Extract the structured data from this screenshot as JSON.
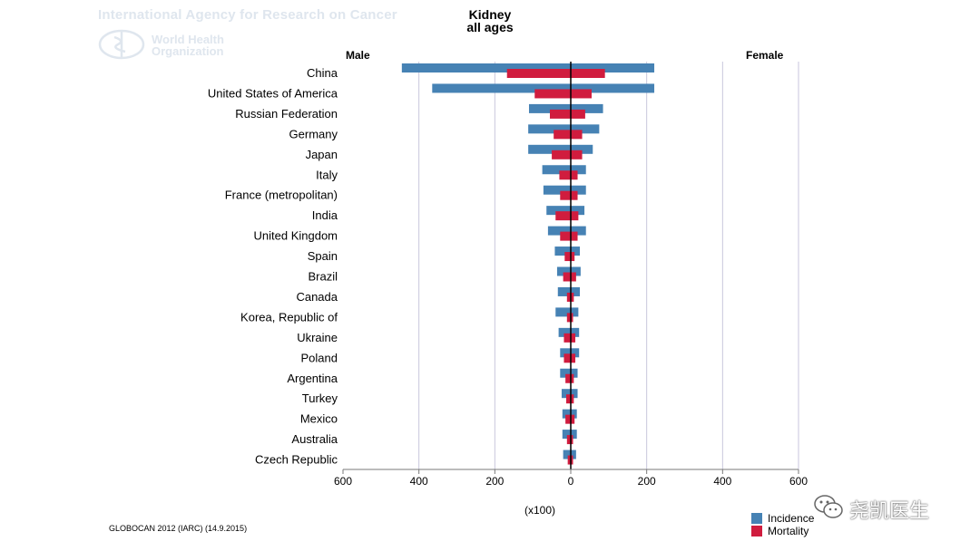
{
  "header": {
    "agency": "International Agency for Research on Cancer",
    "org_line1": "World Health",
    "org_line2": "Organization"
  },
  "chart_data": {
    "type": "bar",
    "title": "Kidney",
    "subtitle": "all ages",
    "left_label": "Male",
    "right_label": "Female",
    "unit_label": "(x100)",
    "xlim": [
      -600,
      600
    ],
    "x_ticks": [
      -600,
      -400,
      -200,
      0,
      200,
      400,
      600
    ],
    "x_tick_labels": [
      "600",
      "400",
      "200",
      "0",
      "200",
      "400",
      "600"
    ],
    "gridlines": [
      -400,
      -200,
      200,
      400,
      600
    ],
    "categories": [
      "China",
      "United States of America",
      "Russian Federation",
      "Germany",
      "Japan",
      "Italy",
      "France (metropolitan)",
      "India",
      "United Kingdom",
      "Spain",
      "Brazil",
      "Canada",
      "Korea, Republic of",
      "Ukraine",
      "Poland",
      "Argentina",
      "Turkey",
      "Mexico",
      "Australia",
      "Czech Republic"
    ],
    "series": [
      {
        "name": "Incidence",
        "color": "#4682b4",
        "male": [
          445,
          365,
          110,
          112,
          112,
          75,
          72,
          64,
          60,
          42,
          36,
          34,
          40,
          32,
          28,
          28,
          24,
          22,
          22,
          20
        ],
        "female": [
          220,
          220,
          85,
          75,
          58,
          40,
          40,
          36,
          40,
          24,
          26,
          24,
          20,
          22,
          22,
          18,
          18,
          16,
          16,
          14
        ]
      },
      {
        "name": "Mortality",
        "color": "#d01c3e",
        "male": [
          168,
          95,
          55,
          45,
          50,
          30,
          28,
          40,
          28,
          16,
          20,
          10,
          10,
          18,
          18,
          14,
          12,
          14,
          10,
          8
        ],
        "female": [
          90,
          55,
          38,
          30,
          30,
          18,
          18,
          20,
          18,
          10,
          14,
          8,
          6,
          12,
          12,
          8,
          8,
          10,
          6,
          6
        ]
      }
    ],
    "legend": {
      "position": "bottom-right",
      "items": [
        "Incidence",
        "Mortality"
      ]
    },
    "footer": "GLOBOCAN 2012 (IARC) (14.9.2015)"
  },
  "watermark": {
    "text": "尧凯医生"
  }
}
